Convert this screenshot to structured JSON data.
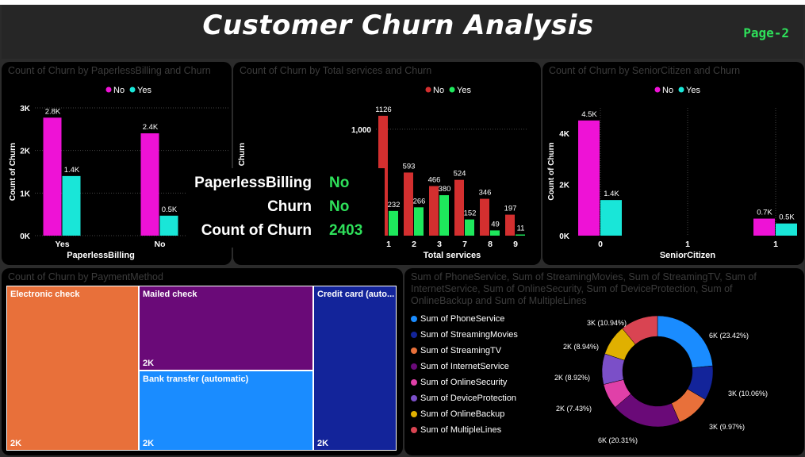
{
  "header": {
    "title": "Customer Churn Analysis",
    "page_label": "Page-2"
  },
  "colors": {
    "no": "#ee12d6",
    "yes": "#19e6d8",
    "no_alt": "#d32f2f",
    "yes_alt": "#1ee85c",
    "accent_green": "#2ee05a"
  },
  "tooltip": {
    "rows": [
      {
        "key": "PaperlessBilling",
        "value": "No"
      },
      {
        "key": "Churn",
        "value": "No"
      },
      {
        "key": "Count of Churn",
        "value": "2403"
      }
    ]
  },
  "treemap": {
    "title": "Count of Churn by PaymentMethod",
    "cells": [
      {
        "label": "Electronic check",
        "value_label": "2K",
        "color": "#e8703a"
      },
      {
        "label": "Mailed check",
        "value_label": "2K",
        "color": "#6a0a78"
      },
      {
        "label": "Bank transfer (automatic)",
        "value_label": "2K",
        "color": "#1a8cff"
      },
      {
        "label": "Credit card (auto...",
        "value_label": "2K",
        "color": "#13249a"
      }
    ]
  },
  "donut_legend": [
    {
      "label": "Sum of PhoneService",
      "color": "#1a8cff"
    },
    {
      "label": "Sum of StreamingMovies",
      "color": "#13249a"
    },
    {
      "label": "Sum of StreamingTV",
      "color": "#e8703a"
    },
    {
      "label": "Sum of InternetService",
      "color": "#6a0a78"
    },
    {
      "label": "Sum of OnlineSecurity",
      "color": "#e040a8"
    },
    {
      "label": "Sum of DeviceProtection",
      "color": "#7b4fc8"
    },
    {
      "label": "Sum of OnlineBackup",
      "color": "#e0b000"
    },
    {
      "label": "Sum of MultipleLines",
      "color": "#d94452"
    }
  ],
  "chart_data": [
    {
      "type": "bar",
      "title": "Count of Churn by PaperlessBilling and Churn",
      "xlabel": "PaperlessBilling",
      "ylabel": "Count of Churn",
      "categories": [
        "Yes",
        "No"
      ],
      "series": [
        {
          "name": "No",
          "values": [
            2771,
            2403
          ],
          "labels": [
            "2.8K",
            "2.4K"
          ]
        },
        {
          "name": "Yes",
          "values": [
            1400,
            469
          ],
          "labels": [
            "1.4K",
            "0.5K"
          ]
        }
      ],
      "ylim": [
        0,
        3000
      ],
      "yticks": [
        "0K",
        "1K",
        "2K",
        "3K"
      ],
      "legend": "top-center"
    },
    {
      "type": "bar",
      "title": "Count of Churn by Total services and Churn",
      "xlabel": "Total services",
      "ylabel": "Count of Churn",
      "categories": [
        "1",
        "2",
        "3",
        "7",
        "8",
        "9"
      ],
      "series": [
        {
          "name": "No",
          "values": [
            1126,
            593,
            466,
            524,
            346,
            197
          ],
          "labels": [
            "1126",
            "593",
            "466",
            "524",
            "346",
            "197"
          ]
        },
        {
          "name": "Yes",
          "values": [
            232,
            266,
            380,
            152,
            49,
            11
          ],
          "labels": [
            "232",
            "266",
            "380",
            "152",
            "49",
            "11"
          ]
        }
      ],
      "ylim": [
        0,
        1200
      ],
      "yticks": [
        "1,000"
      ],
      "legend": "top-center"
    },
    {
      "type": "bar",
      "title": "Count of Churn by SeniorCitizen and Churn",
      "xlabel": "SeniorCitizen",
      "ylabel": "Count of Churn",
      "categories": [
        "0",
        "1"
      ],
      "x_ticks": [
        "0",
        "1",
        "1"
      ],
      "series": [
        {
          "name": "No",
          "values": [
            4508,
            666
          ],
          "labels": [
            "4.5K",
            "0.7K"
          ]
        },
        {
          "name": "Yes",
          "values": [
            1393,
            476
          ],
          "labels": [
            "1.4K",
            "0.5K"
          ]
        }
      ],
      "ylim": [
        0,
        5000
      ],
      "yticks": [
        "0K",
        "2K",
        "4K"
      ],
      "legend": "top-center"
    },
    {
      "type": "pie",
      "donut": true,
      "title": "Sum of PhoneService, Sum of StreamingMovies, Sum of StreamingTV, Sum of InternetService, Sum of OnlineSecurity, Sum of DeviceProtection, Sum of OnlineBackup and Sum of MultipleLines",
      "labels": [
        "Sum of PhoneService",
        "Sum of StreamingMovies",
        "Sum of StreamingTV",
        "Sum of InternetService",
        "Sum of OnlineSecurity",
        "Sum of DeviceProtection",
        "Sum of OnlineBackup",
        "Sum of MultipleLines"
      ],
      "values": [
        23.42,
        10.06,
        9.97,
        20.31,
        7.43,
        8.92,
        8.94,
        10.94
      ],
      "data_labels": [
        "6K (23.42%)",
        "3K (10.06%)",
        "3K (9.97%)",
        "6K (20.31%)",
        "2K (7.43%)",
        "2K (8.92%)",
        "2K (8.94%)",
        "3K (10.94%)"
      ],
      "legend": "left"
    }
  ]
}
